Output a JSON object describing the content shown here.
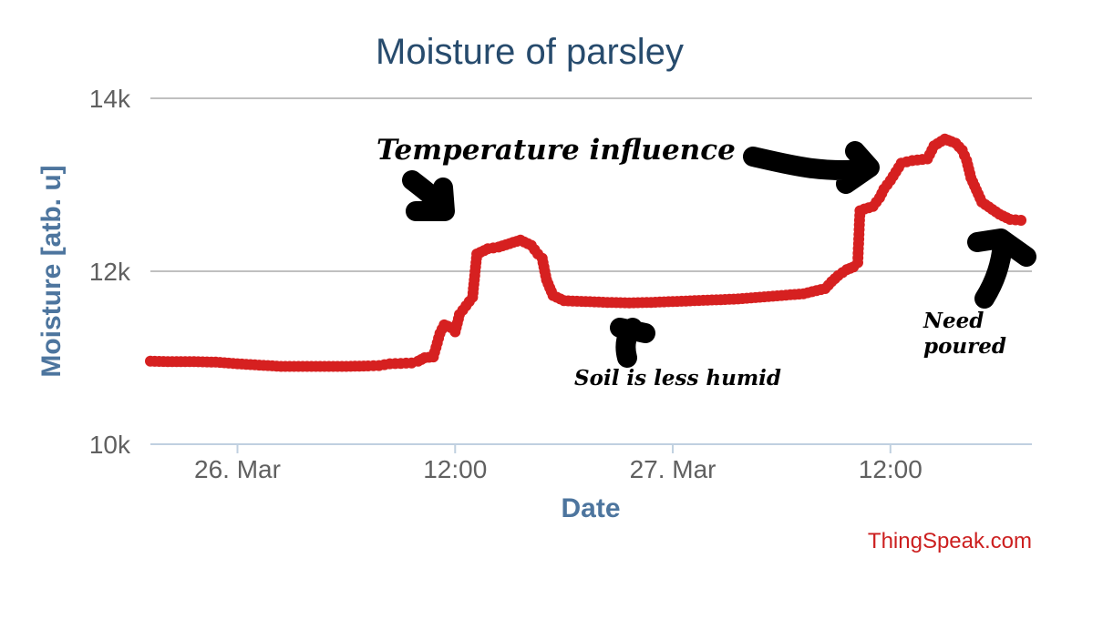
{
  "chart_data": {
    "type": "line",
    "title": "Moisture of parsley",
    "xlabel": "Date",
    "ylabel": "Moisture [atb. u]",
    "ylim": [
      10000,
      14000
    ],
    "yticks": [
      {
        "value": 10000,
        "label": "10k"
      },
      {
        "value": 12000,
        "label": "12k"
      },
      {
        "value": 14000,
        "label": "14k"
      }
    ],
    "xlim_hours": [
      -4,
      36.5
    ],
    "xticks": [
      {
        "hour": 0,
        "label": "26. Mar"
      },
      {
        "hour": 10,
        "label": "12:00"
      },
      {
        "hour": 20,
        "label": "27. Mar"
      },
      {
        "hour": 30,
        "label": "12:00"
      }
    ],
    "series": [
      {
        "name": "Moisture",
        "color": "#d62020",
        "x_hours": [
          -4,
          -3,
          -2,
          -1,
          0,
          1,
          2,
          3,
          4,
          5,
          6,
          6.5,
          7,
          7.5,
          8,
          8.3,
          8.6,
          9,
          9.3,
          9.5,
          9.8,
          10,
          10.2,
          10.5,
          10.8,
          11,
          11.5,
          12,
          12.5,
          13,
          13.5,
          13.8,
          14,
          14.2,
          14.5,
          15,
          16,
          17,
          18,
          19,
          20,
          21,
          22,
          23,
          24,
          25,
          26,
          27,
          27.3,
          27.6,
          28,
          28.3,
          28.5,
          28.6,
          28.8,
          29.2,
          29.5,
          29.7,
          30,
          30.5,
          31,
          31.7,
          32,
          32.5,
          32.8,
          33,
          33.3,
          33.5,
          33.7,
          34.2,
          35,
          35.5,
          36
        ],
        "values": [
          10960,
          10955,
          10955,
          10950,
          10930,
          10915,
          10900,
          10900,
          10900,
          10900,
          10905,
          10910,
          10930,
          10935,
          10940,
          10960,
          11000,
          11010,
          11280,
          11380,
          11350,
          11300,
          11500,
          11600,
          11700,
          12200,
          12260,
          12280,
          12320,
          12360,
          12300,
          12200,
          12150,
          11900,
          11720,
          11660,
          11650,
          11640,
          11635,
          11640,
          11650,
          11660,
          11670,
          11680,
          11700,
          11720,
          11740,
          11800,
          11880,
          11950,
          12020,
          12050,
          12100,
          12700,
          12720,
          12750,
          12850,
          12950,
          13050,
          13250,
          13280,
          13300,
          13450,
          13530,
          13500,
          13480,
          13400,
          13280,
          13080,
          12800,
          12660,
          12600,
          12590
        ]
      }
    ]
  },
  "annotations": {
    "temperature": "Temperature influence",
    "soil": "Soil is less humid",
    "need_line1": "Need",
    "need_line2": "poured"
  },
  "credit": "ThingSpeak.com"
}
